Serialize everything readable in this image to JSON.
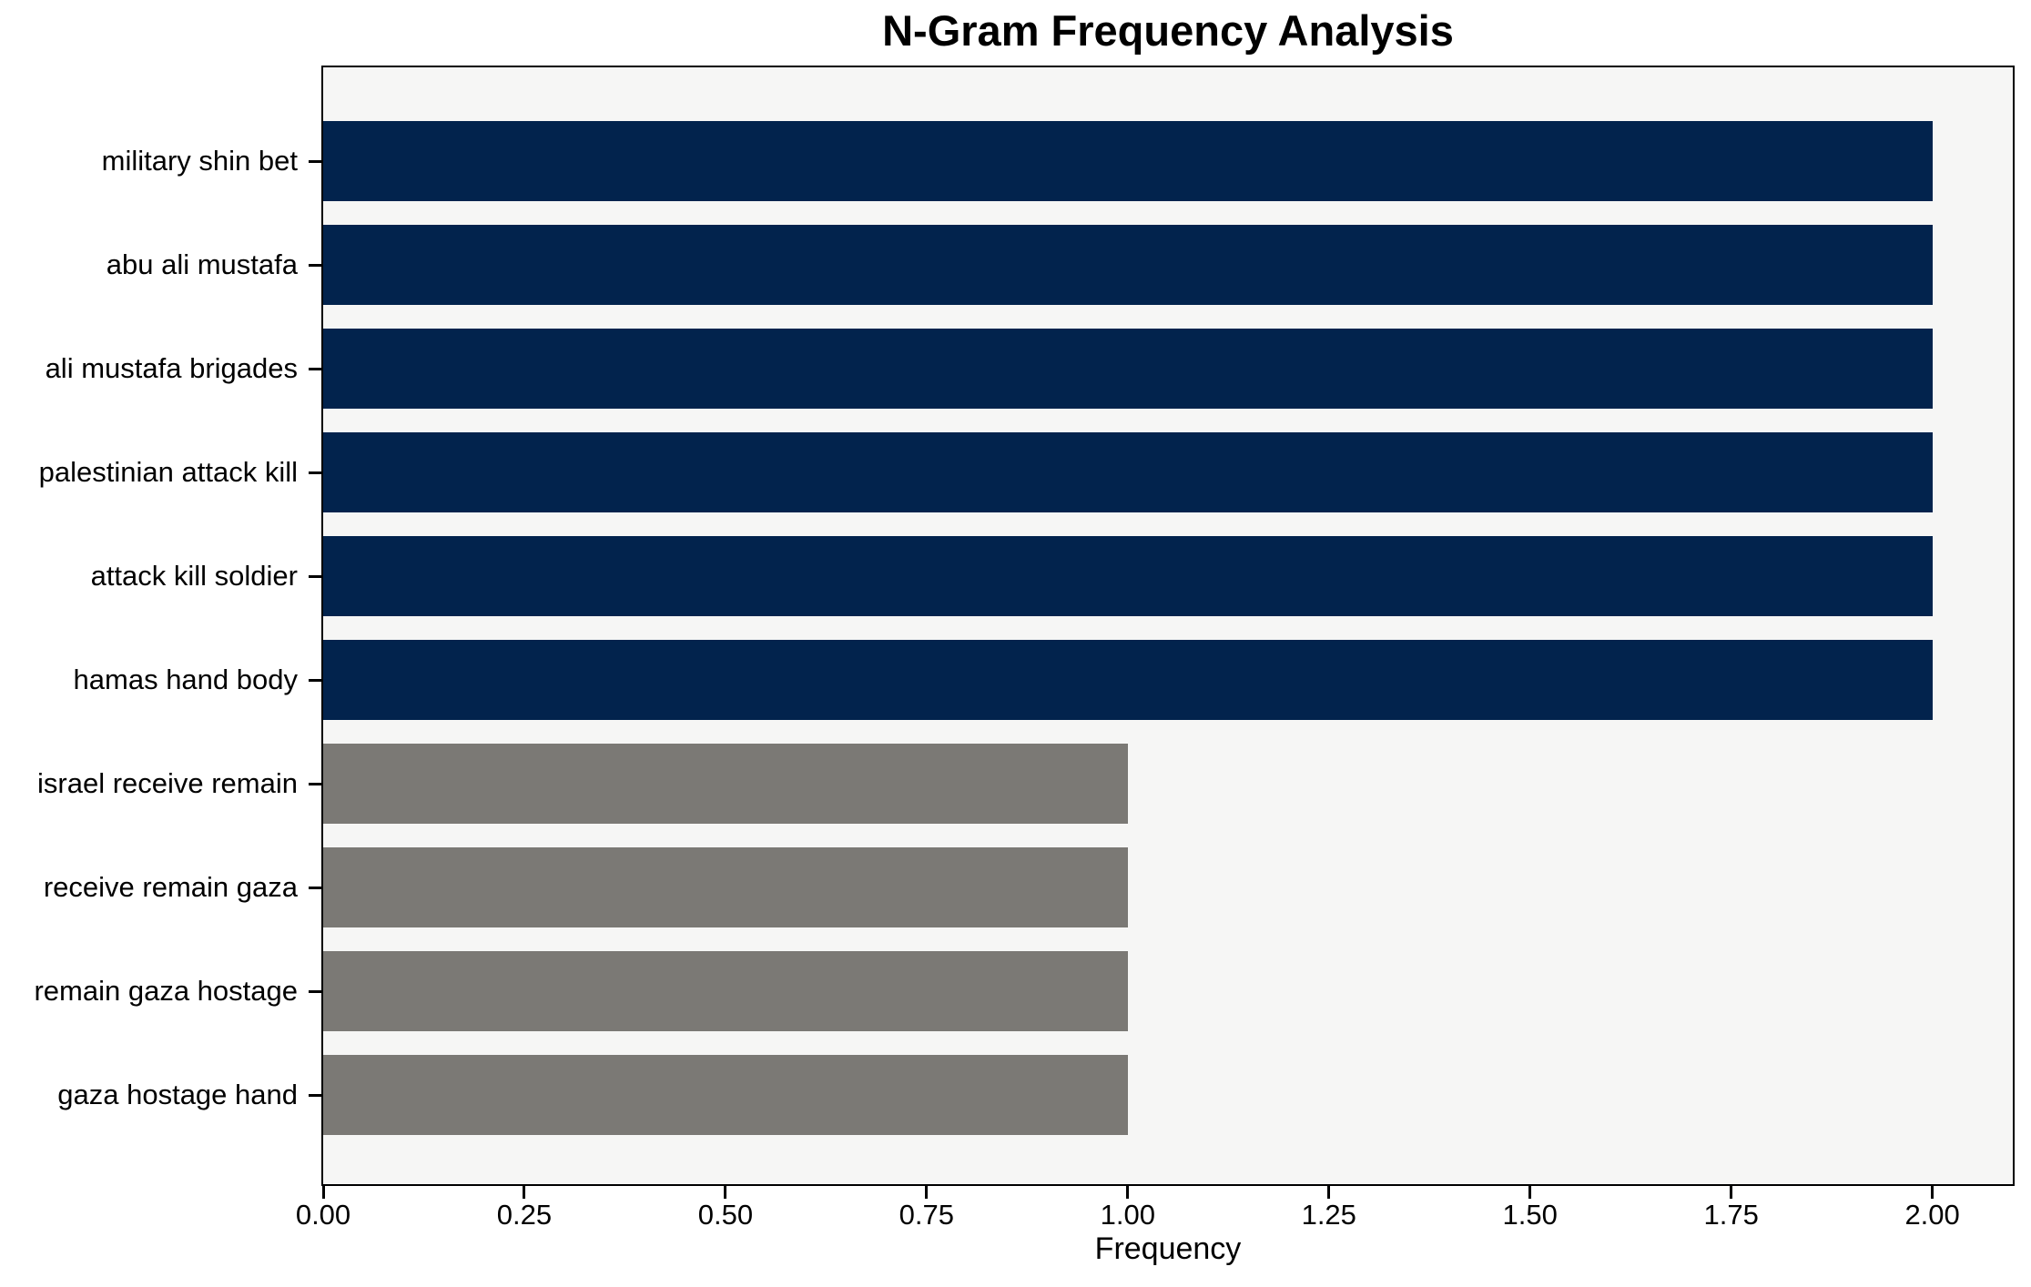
{
  "chart_data": {
    "type": "bar",
    "orientation": "horizontal",
    "title": "N-Gram Frequency Analysis",
    "xlabel": "Frequency",
    "ylabel": "",
    "categories": [
      "military shin bet",
      "abu ali mustafa",
      "ali mustafa brigades",
      "palestinian attack kill",
      "attack kill soldier",
      "hamas hand body",
      "israel receive remain",
      "receive remain gaza",
      "remain gaza hostage",
      "gaza hostage hand"
    ],
    "values": [
      2,
      2,
      2,
      2,
      2,
      2,
      1,
      1,
      1,
      1
    ],
    "bar_colors": [
      "#02234D",
      "#02234D",
      "#02234D",
      "#02234D",
      "#02234D",
      "#02234D",
      "#7B7975",
      "#7B7975",
      "#7B7975",
      "#7B7975"
    ],
    "xlim": [
      0,
      2.1
    ],
    "xticks": [
      0,
      0.25,
      0.5,
      0.75,
      1.0,
      1.25,
      1.5,
      1.75,
      2.0
    ],
    "xtick_labels": [
      "0.00",
      "0.25",
      "0.50",
      "0.75",
      "1.00",
      "1.25",
      "1.50",
      "1.75",
      "2.00"
    ],
    "grid": false,
    "legend_position": "none",
    "colors": {
      "high_frequency_bar": "#02234D",
      "low_frequency_bar": "#7B7975",
      "plot_background": "#F6F6F5",
      "figure_background": "#FFFFFF",
      "axis": "#000000"
    }
  }
}
